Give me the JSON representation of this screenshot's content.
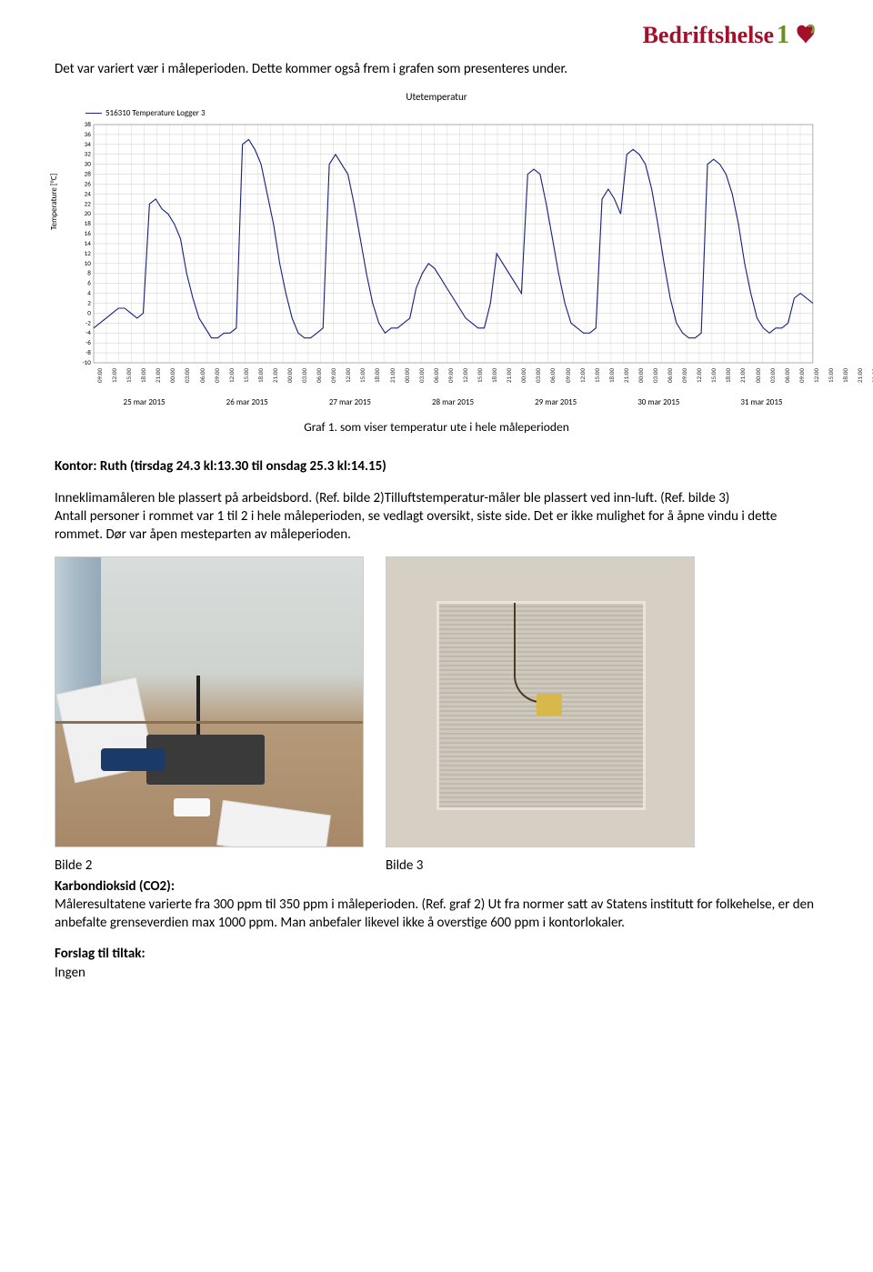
{
  "logo": {
    "brand": "Bedriftshelse",
    "suffix": "1"
  },
  "intro_para": "Det var variert vær i måleperioden. Dette kommer også frem i grafen som presenteres under.",
  "chart": {
    "type": "line",
    "title": "Utetemperatur",
    "legend": "516310 Temperature Logger 3",
    "y_label": "Temperature [°C]",
    "line_color": "#1a237e",
    "grid_color": "#bdbdbd",
    "background_color": "#ffffff",
    "ylim": [
      -10,
      38
    ],
    "ytick_step": 2,
    "yticks": [
      -10,
      -8,
      -6,
      -4,
      -2,
      0,
      2,
      4,
      6,
      8,
      10,
      12,
      14,
      16,
      18,
      20,
      22,
      24,
      26,
      28,
      30,
      32,
      34,
      36,
      38
    ],
    "x_hours": [
      "09:00",
      "12:00",
      "15:00",
      "18:00",
      "21:00",
      "00:00",
      "03:00",
      "06:00"
    ],
    "x_dates": [
      "25 mar 2015",
      "26 mar 2015",
      "27 mar 2015",
      "28 mar 2015",
      "29 mar 2015",
      "30 mar 2015",
      "31 mar 2015"
    ],
    "num_x_ticks": 57,
    "values": [
      -3,
      -2,
      -1,
      0,
      1,
      1,
      0,
      -1,
      0,
      22,
      23,
      21,
      20,
      18,
      15,
      8,
      3,
      -1,
      -3,
      -5,
      -5,
      -4,
      -4,
      -3,
      34,
      35,
      33,
      30,
      24,
      18,
      10,
      4,
      -1,
      -4,
      -5,
      -5,
      -4,
      -3,
      30,
      32,
      30,
      28,
      22,
      15,
      8,
      2,
      -2,
      -4,
      -3,
      -3,
      -2,
      -1,
      5,
      8,
      10,
      9,
      7,
      5,
      3,
      1,
      -1,
      -2,
      -3,
      -3,
      2,
      12,
      10,
      8,
      6,
      4,
      28,
      29,
      28,
      22,
      15,
      8,
      2,
      -2,
      -3,
      -4,
      -4,
      -3,
      23,
      25,
      23,
      20,
      32,
      33,
      32,
      30,
      25,
      18,
      10,
      3,
      -2,
      -4,
      -5,
      -5,
      -4,
      30,
      31,
      30,
      28,
      24,
      18,
      10,
      4,
      -1,
      -3,
      -4,
      -3,
      -3,
      -2,
      3,
      4,
      3,
      2
    ]
  },
  "caption": "Graf 1. som viser temperatur ute i hele måleperioden",
  "kontor_heading": "Kontor: Ruth (tirsdag 24.3 kl:13.30 til onsdag 25.3 kl:14.15)",
  "body_text": "Inneklimamåleren ble plassert på arbeidsbord. (Ref. bilde 2)Tilluftstemperatur-måler ble plassert ved inn-luft. (Ref. bilde 3)\nAntall personer i rommet var 1 til 2 i hele måleperioden, se vedlagt oversikt, siste side. Det er ikke mulighet for å åpne vindu i dette rommet. Dør var åpen mesteparten av måleperioden.",
  "photo_labels": {
    "left": "Bilde 2",
    "right": "Bilde 3"
  },
  "co2_heading": "Karbondioksid (CO2):",
  "co2_text": "Måleresultatene varierte fra 300 ppm til 350 ppm i måleperioden. (Ref. graf 2) Ut fra normer satt av Statens institutt for folkehelse, er den anbefalte grenseverdien max 1000 ppm. Man anbefaler likevel ikke å overstige 600 ppm i kontorlokaler.",
  "tiltak_heading": "Forslag til tiltak:",
  "tiltak_text": "Ingen"
}
